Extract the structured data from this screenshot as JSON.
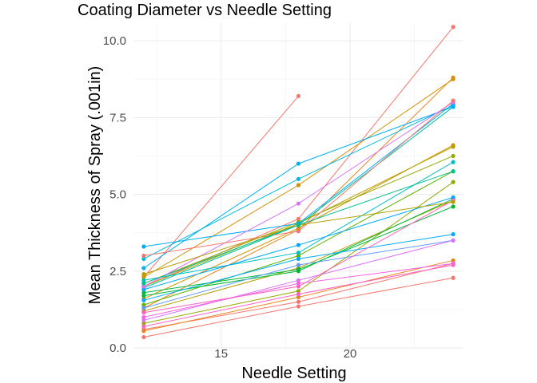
{
  "chart_data": {
    "type": "line",
    "title": "Coating Diameter vs Needle Setting",
    "xlabel": "Needle Setting",
    "ylabel": "Mean Thickness of Spray (.001in)",
    "xlim": [
      11.6,
      24.4
    ],
    "ylim": [
      0,
      10.6
    ],
    "x_ticks": [
      15,
      20
    ],
    "x_tick_labels": [
      "15",
      "20"
    ],
    "y_ticks": [
      0,
      2.5,
      5,
      7.5,
      10
    ],
    "y_tick_labels": [
      "0.0",
      "2.5",
      "5.0",
      "7.5",
      "10.0"
    ],
    "grid": true,
    "legend": "none",
    "x": [
      12,
      18,
      24
    ],
    "series": [
      {
        "color": "#F8766D",
        "values": [
          0.35,
          1.35,
          2.28
        ]
      },
      {
        "color": "#F8766D",
        "values": [
          0.6,
          1.5,
          2.75
        ]
      },
      {
        "color": "#F8766D",
        "values": [
          2.3,
          8.2,
          null
        ]
      },
      {
        "color": "#F8766D",
        "values": [
          2.0,
          4.2,
          10.45
        ]
      },
      {
        "color": "#E7861B",
        "values": [
          0.55,
          1.65,
          2.85
        ]
      },
      {
        "color": "#E7861B",
        "values": [
          1.3,
          3.85,
          8.8
        ]
      },
      {
        "color": "#D39200",
        "values": [
          2.3,
          5.3,
          8.75
        ]
      },
      {
        "color": "#D39200",
        "values": [
          1.6,
          3.9,
          6.6
        ]
      },
      {
        "color": "#B79F00",
        "values": [
          2.0,
          4.05,
          6.55
        ]
      },
      {
        "color": "#B79F00",
        "values": [
          1.2,
          2.6,
          4.8
        ]
      },
      {
        "color": "#93AA00",
        "values": [
          2.1,
          4.1,
          6.25
        ]
      },
      {
        "color": "#93AA00",
        "values": [
          0.8,
          1.85,
          5.4
        ]
      },
      {
        "color": "#5EB300",
        "values": [
          1.4,
          3.0,
          5.75
        ]
      },
      {
        "color": "#00BA38",
        "values": [
          1.8,
          2.55,
          4.6
        ]
      },
      {
        "color": "#00BA38",
        "values": [
          1.7,
          2.5,
          4.85
        ]
      },
      {
        "color": "#00C19F",
        "values": [
          1.95,
          4.0,
          7.85
        ]
      },
      {
        "color": "#00BFC4",
        "values": [
          2.2,
          3.1,
          6.05
        ]
      },
      {
        "color": "#00B9E3",
        "values": [
          2.9,
          5.5,
          7.9
        ]
      },
      {
        "color": "#00ADFA",
        "values": [
          3.3,
          4.05,
          7.95
        ]
      },
      {
        "color": "#00A9FF",
        "values": [
          1.9,
          3.35,
          4.9
        ]
      },
      {
        "color": "#00A9FF",
        "values": [
          1.55,
          2.9,
          3.7
        ]
      },
      {
        "color": "#619CFF",
        "values": [
          1.3,
          2.7,
          3.5
        ]
      },
      {
        "color": "#00B0F6",
        "values": [
          2.6,
          6.0,
          7.85
        ]
      },
      {
        "color": "#DB72FB",
        "values": [
          2.0,
          4.7,
          8.0
        ]
      },
      {
        "color": "#DB72FB",
        "values": [
          0.9,
          2.2,
          3.5
        ]
      },
      {
        "color": "#F564E3",
        "values": [
          1.0,
          2.1,
          2.75
        ]
      },
      {
        "color": "#FF61C3",
        "values": [
          1.15,
          2.0,
          4.8
        ]
      },
      {
        "color": "#FF61C3",
        "values": [
          0.7,
          1.75,
          2.7
        ]
      },
      {
        "color": "#F8766D",
        "values": [
          3.0,
          3.8,
          8.05
        ]
      },
      {
        "color": "#B79F00",
        "values": [
          2.4,
          4.0,
          4.75
        ]
      },
      {
        "color": "#00C08B",
        "values": [
          2.1,
          4.0,
          5.75
        ]
      }
    ]
  }
}
